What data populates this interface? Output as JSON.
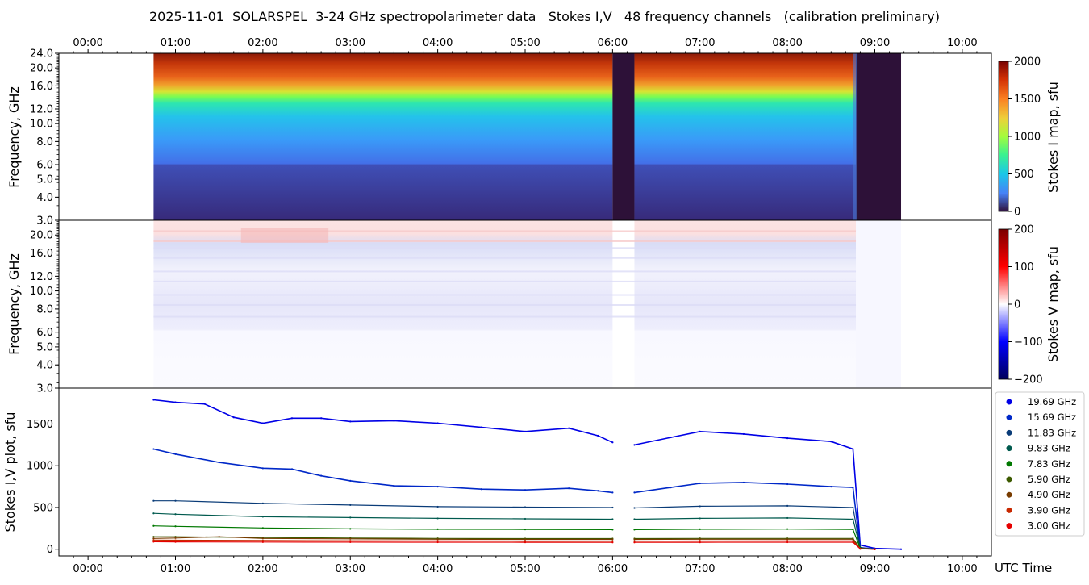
{
  "title": "2025-11-01  SOLARSPEL  3-24 GHz spectropolarimeter data   Stokes I,V   48 frequency channels   (calibration preliminary)",
  "x_axis": {
    "ticks": [
      "00:00",
      "01:00",
      "02:00",
      "03:00",
      "04:00",
      "05:00",
      "06:00",
      "07:00",
      "08:00",
      "09:00",
      "10:00"
    ],
    "label": "UTC Time"
  },
  "colors": {
    "stokes_v_cmap": [
      "#00005a",
      "#0000ff",
      "#ffffff",
      "#ff0000",
      "#7a0000"
    ]
  },
  "chart_data": [
    {
      "type": "heatmap",
      "name": "Stokes I map",
      "ylabel": "Frequency, GHz",
      "yticks": [
        "3.0",
        "4.0",
        "5.0",
        "6.0",
        "8.0",
        "10.0",
        "12.0",
        "16.0",
        "20.0",
        "24.0"
      ],
      "yscale": "log",
      "ylim": [
        3.0,
        24.0
      ],
      "xlim": [
        "23:40",
        "10:20"
      ],
      "data_span": [
        "00:45",
        "09:18"
      ],
      "gaps": [
        [
          "06:00",
          "06:15"
        ],
        [
          "08:47",
          "09:18"
        ]
      ],
      "colorbar": {
        "label": "Stokes I map, sfu",
        "ticks": [
          "0",
          "500",
          "1000",
          "1500",
          "2000"
        ],
        "range": [
          0,
          2000
        ]
      }
    },
    {
      "type": "heatmap",
      "name": "Stokes V map",
      "ylabel": "Frequency, GHz",
      "yticks": [
        "3.0",
        "4.0",
        "5.0",
        "6.0",
        "8.0",
        "10.0",
        "12.0",
        "16.0",
        "20.0"
      ],
      "yscale": "log",
      "ylim": [
        3.0,
        24.0
      ],
      "colorbar": {
        "label": "Stokes V map, sfu",
        "ticks": [
          "200",
          "100",
          "0",
          "−100",
          "−200"
        ],
        "range": [
          -200,
          200
        ]
      }
    },
    {
      "type": "scatter",
      "name": "Stokes I,V plot",
      "ylabel": "Stokes I,V plot, sfu",
      "yticks": [
        "0",
        "500",
        "1000",
        "1500"
      ],
      "ylim": [
        -80,
        1930
      ],
      "legend_position": "outside-right",
      "series": [
        {
          "name": "19.69 GHz",
          "color": "#0000e6",
          "x": [
            "00:45",
            "01:00",
            "01:20",
            "01:40",
            "02:00",
            "02:20",
            "02:40",
            "03:00",
            "03:30",
            "04:00",
            "04:30",
            "05:00",
            "05:30",
            "05:50",
            "06:00",
            "06:15",
            "06:40",
            "07:00",
            "07:30",
            "08:00",
            "08:30",
            "08:45",
            "08:50",
            "09:00",
            "09:18"
          ],
          "values": [
            1790,
            1760,
            1740,
            1580,
            1510,
            1570,
            1570,
            1530,
            1540,
            1510,
            1460,
            1410,
            1450,
            1360,
            1280,
            1250,
            1340,
            1410,
            1380,
            1330,
            1290,
            1200,
            50,
            10,
            0
          ]
        },
        {
          "name": "15.69 GHz",
          "color": "#0028c8",
          "x": [
            "00:45",
            "01:00",
            "01:30",
            "02:00",
            "02:20",
            "02:40",
            "03:00",
            "03:30",
            "04:00",
            "04:30",
            "05:00",
            "05:30",
            "05:50",
            "06:00",
            "06:15",
            "06:40",
            "07:00",
            "07:30",
            "08:00",
            "08:30",
            "08:45",
            "08:50",
            "09:00"
          ],
          "values": [
            1200,
            1140,
            1040,
            970,
            960,
            880,
            820,
            760,
            750,
            720,
            710,
            730,
            700,
            680,
            680,
            740,
            790,
            800,
            780,
            750,
            740,
            20,
            0
          ]
        },
        {
          "name": "11.83 GHz",
          "color": "#0a3c78",
          "x": [
            "00:45",
            "01:00",
            "02:00",
            "03:00",
            "04:00",
            "05:00",
            "06:00",
            "06:15",
            "07:00",
            "08:00",
            "08:45",
            "08:50",
            "09:00"
          ],
          "values": [
            580,
            580,
            550,
            530,
            510,
            505,
            500,
            495,
            515,
            520,
            500,
            20,
            0
          ]
        },
        {
          "name": "9.83 GHz",
          "color": "#005a4e",
          "x": [
            "00:45",
            "01:00",
            "02:00",
            "03:00",
            "04:00",
            "05:00",
            "06:00",
            "06:15",
            "07:00",
            "08:00",
            "08:45",
            "08:50",
            "09:00"
          ],
          "values": [
            430,
            420,
            390,
            380,
            370,
            365,
            360,
            360,
            370,
            375,
            360,
            15,
            0
          ]
        },
        {
          "name": "7.83 GHz",
          "color": "#007800",
          "x": [
            "00:45",
            "01:00",
            "02:00",
            "03:00",
            "04:00",
            "05:00",
            "06:00",
            "06:15",
            "07:00",
            "08:00",
            "08:45",
            "08:50",
            "09:00"
          ],
          "values": [
            280,
            275,
            255,
            245,
            240,
            238,
            235,
            235,
            240,
            242,
            238,
            10,
            0
          ]
        },
        {
          "name": "5.90 GHz",
          "color": "#3c5a00",
          "x": [
            "00:45",
            "01:00",
            "02:00",
            "03:00",
            "04:00",
            "05:00",
            "06:00",
            "06:15",
            "07:00",
            "08:00",
            "08:45",
            "08:50",
            "09:00"
          ],
          "values": [
            150,
            150,
            140,
            135,
            130,
            128,
            128,
            128,
            130,
            130,
            130,
            8,
            0
          ]
        },
        {
          "name": "4.90 GHz",
          "color": "#783c00",
          "x": [
            "00:45",
            "01:00",
            "01:30",
            "02:00",
            "03:00",
            "04:00",
            "05:00",
            "06:00",
            "06:15",
            "07:00",
            "08:00",
            "08:45",
            "08:50",
            "09:00"
          ],
          "values": [
            130,
            135,
            150,
            130,
            125,
            120,
            118,
            118,
            118,
            120,
            120,
            120,
            6,
            0
          ]
        },
        {
          "name": "3.90 GHz",
          "color": "#c82800",
          "x": [
            "00:45",
            "01:00",
            "02:00",
            "03:00",
            "04:00",
            "05:00",
            "06:00",
            "06:15",
            "07:00",
            "08:00",
            "08:45",
            "08:50",
            "09:00"
          ],
          "values": [
            110,
            108,
            105,
            102,
            100,
            98,
            97,
            97,
            99,
            100,
            100,
            5,
            0
          ]
        },
        {
          "name": "3.00 GHz",
          "color": "#e60000",
          "x": [
            "00:45",
            "01:00",
            "02:00",
            "03:00",
            "04:00",
            "05:00",
            "06:00",
            "06:15",
            "07:00",
            "08:00",
            "08:45",
            "08:50",
            "09:00"
          ],
          "values": [
            90,
            88,
            86,
            85,
            84,
            83,
            82,
            82,
            83,
            84,
            84,
            4,
            0
          ]
        }
      ]
    }
  ]
}
